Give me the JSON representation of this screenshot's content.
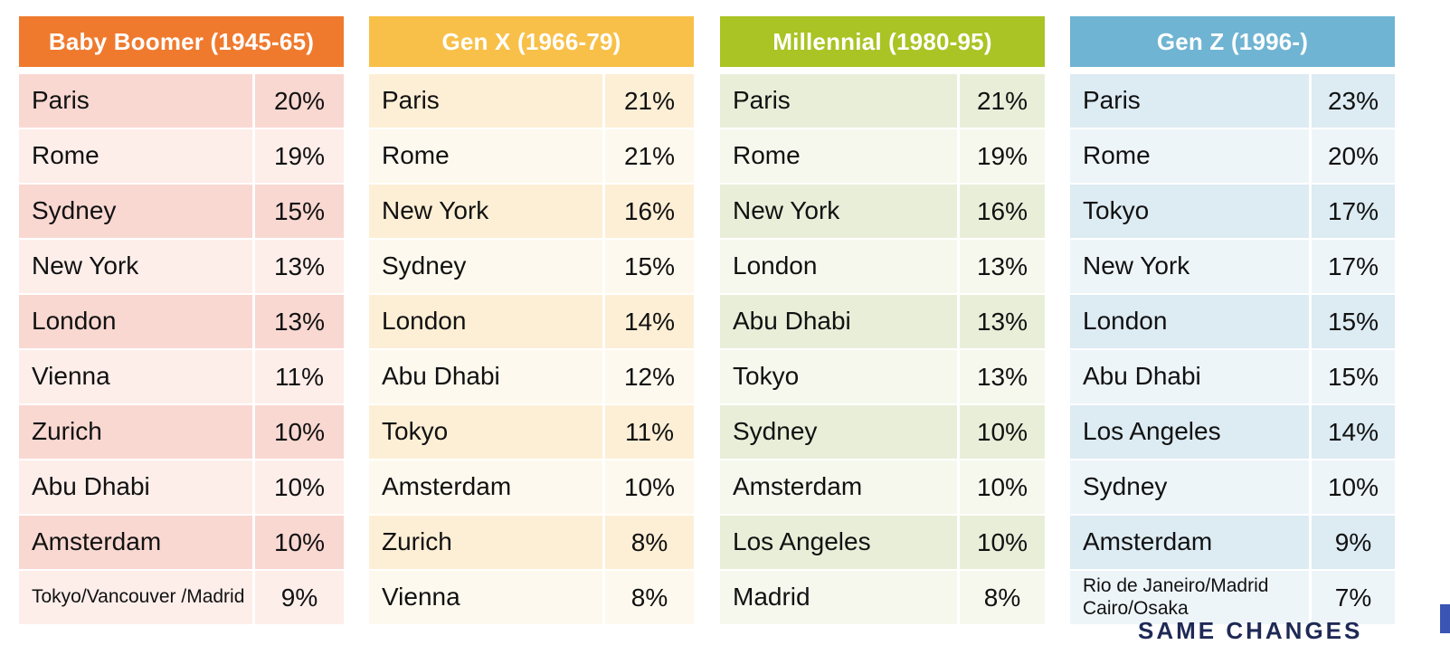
{
  "chart_data": {
    "type": "table",
    "columns": [
      {
        "title": "Baby Boomer (1945-65)",
        "header_color": "#ef7a2e",
        "row_color_dark": "#f9d8d2",
        "row_color_light": "#fdeeea",
        "rows": [
          {
            "city": "Paris",
            "pct": "20%"
          },
          {
            "city": "Rome",
            "pct": "19%"
          },
          {
            "city": "Sydney",
            "pct": "15%"
          },
          {
            "city": "New York",
            "pct": "13%"
          },
          {
            "city": "London",
            "pct": "13%"
          },
          {
            "city": "Vienna",
            "pct": "11%"
          },
          {
            "city": "Zurich",
            "pct": "10%"
          },
          {
            "city": "Abu Dhabi",
            "pct": "10%"
          },
          {
            "city": "Amsterdam",
            "pct": "10%"
          },
          {
            "city": "Tokyo/Vancouver /Madrid",
            "pct": "9%",
            "small": true
          }
        ]
      },
      {
        "title": "Gen X (1966-79)",
        "header_color": "#f8c048",
        "row_color_dark": "#fdefd6",
        "row_color_light": "#fef9ee",
        "rows": [
          {
            "city": "Paris",
            "pct": "21%"
          },
          {
            "city": "Rome",
            "pct": "21%"
          },
          {
            "city": "New York",
            "pct": "16%"
          },
          {
            "city": "Sydney",
            "pct": "15%"
          },
          {
            "city": "London",
            "pct": "14%"
          },
          {
            "city": "Abu Dhabi",
            "pct": "12%"
          },
          {
            "city": "Tokyo",
            "pct": "11%"
          },
          {
            "city": "Amsterdam",
            "pct": "10%"
          },
          {
            "city": "Zurich",
            "pct": "8%"
          },
          {
            "city": "Vienna",
            "pct": "8%"
          }
        ]
      },
      {
        "title": "Millennial (1980-95)",
        "header_color": "#a9c424",
        "row_color_dark": "#e9eed9",
        "row_color_light": "#f6f8ee",
        "rows": [
          {
            "city": "Paris",
            "pct": "21%"
          },
          {
            "city": "Rome",
            "pct": "19%"
          },
          {
            "city": "New York",
            "pct": "16%"
          },
          {
            "city": "London",
            "pct": "13%"
          },
          {
            "city": "Abu Dhabi",
            "pct": "13%"
          },
          {
            "city": "Tokyo",
            "pct": "13%"
          },
          {
            "city": "Sydney",
            "pct": "10%"
          },
          {
            "city": "Amsterdam",
            "pct": "10%"
          },
          {
            "city": "Los Angeles",
            "pct": "10%"
          },
          {
            "city": "Madrid",
            "pct": "8%"
          }
        ]
      },
      {
        "title": "Gen Z (1996-)",
        "header_color": "#6fb4d2",
        "row_color_dark": "#ddebf3",
        "row_color_light": "#eef5f9",
        "rows": [
          {
            "city": "Paris",
            "pct": "23%"
          },
          {
            "city": "Rome",
            "pct": "20%"
          },
          {
            "city": "Tokyo",
            "pct": "17%"
          },
          {
            "city": "New York",
            "pct": "17%"
          },
          {
            "city": "London",
            "pct": "15%"
          },
          {
            "city": "Abu Dhabi",
            "pct": "15%"
          },
          {
            "city": "Los Angeles",
            "pct": "14%"
          },
          {
            "city": "Sydney",
            "pct": "10%"
          },
          {
            "city": "Amsterdam",
            "pct": "9%"
          },
          {
            "city": "Rio de Janeiro/Madrid Cairo/Osaka",
            "pct": "7%",
            "small": true
          }
        ]
      }
    ]
  },
  "footer": {
    "partial_text": "SAME CHANGES",
    "accent_color": "#3a55b4"
  }
}
